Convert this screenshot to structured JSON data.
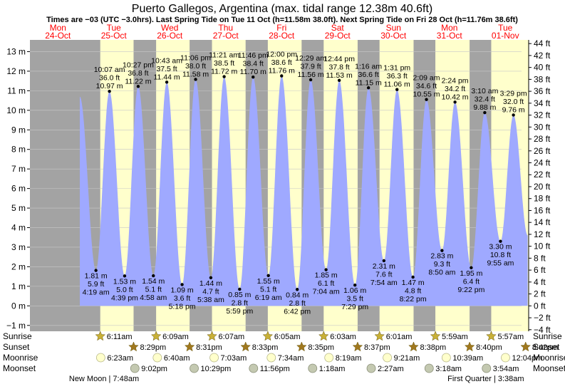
{
  "chart_data": {
    "type": "area",
    "title": "Puerto Gallegos, Argentina (max. tidal range 12.38m 40.6ft)",
    "subtitle": "Times are −03 (UTC −3.0hrs). Last Spring Tide on Tue 11 Oct (h=11.58m 38.0ft). Next Spring Tide on Fri 28 Oct (h=11.76m 38.6ft)",
    "days": [
      {
        "name": "Mon",
        "date": "24-Oct"
      },
      {
        "name": "Tue",
        "date": "25-Oct"
      },
      {
        "name": "Wed",
        "date": "26-Oct"
      },
      {
        "name": "Thu",
        "date": "27-Oct"
      },
      {
        "name": "Fri",
        "date": "28-Oct"
      },
      {
        "name": "Sat",
        "date": "29-Oct"
      },
      {
        "name": "Sun",
        "date": "30-Oct"
      },
      {
        "name": "Mon",
        "date": "31-Oct"
      },
      {
        "name": "Tue",
        "date": "01-Nov"
      }
    ],
    "ylabel_left": "m",
    "ylabel_right": "ft",
    "ylim_m": [
      -1.3,
      13.6
    ],
    "ylim_ft": [
      -4.2652,
      44.6195
    ],
    "y_ticks_m": [
      -1,
      0,
      1,
      2,
      3,
      4,
      5,
      6,
      7,
      8,
      9,
      10,
      11,
      12,
      13
    ],
    "y_tick_labels_m": [
      "−1 m",
      "0 m",
      "1 m",
      "2 m",
      "3 m",
      "4 m",
      "5 m",
      "6 m",
      "7 m",
      "8 m",
      "9 m",
      "10 m",
      "11 m",
      "12 m",
      "13 m"
    ],
    "y_ticks_ft": [
      -4,
      -2,
      0,
      2,
      4,
      6,
      8,
      10,
      12,
      14,
      16,
      18,
      20,
      22,
      24,
      26,
      28,
      30,
      32,
      34,
      36,
      38,
      40,
      42,
      44
    ],
    "y_tick_labels_ft": [
      "−4 ft",
      "−2 ft",
      "0 ft",
      "2 ft",
      "4 ft",
      "6 ft",
      "8 ft",
      "10 ft",
      "12 ft",
      "14 ft",
      "16 ft",
      "18 ft",
      "20 ft",
      "22 ft",
      "24 ft",
      "26 ft",
      "28 ft",
      "30 ft",
      "32 ft",
      "34 ft",
      "36 ft",
      "38 ft",
      "40 ft",
      "42 ft",
      "44 ft"
    ],
    "series": [
      {
        "name": "tide",
        "points": [
          {
            "day": 0,
            "hour": 21.4,
            "kind": "high",
            "h": 10.7,
            "labels": []
          },
          {
            "day": 1,
            "hour": 4.32,
            "kind": "low",
            "h": 1.81,
            "labels": [
              "1.81 m",
              "5.9 ft",
              "4:19 am"
            ]
          },
          {
            "day": 1,
            "hour": 10.12,
            "kind": "high",
            "h": 10.97,
            "labels": [
              "10:07 am",
              "36.0 ft",
              "10.97 m"
            ]
          },
          {
            "day": 1,
            "hour": 16.65,
            "kind": "low",
            "h": 1.53,
            "labels": [
              "1.53 m",
              "5.0 ft",
              "4:39 pm"
            ]
          },
          {
            "day": 1,
            "hour": 22.45,
            "kind": "high",
            "h": 11.22,
            "labels": [
              "10:27 pm",
              "36.8 ft",
              "11.22 m"
            ]
          },
          {
            "day": 2,
            "hour": 4.97,
            "kind": "low",
            "h": 1.54,
            "labels": [
              "1.54 m",
              "5.1 ft",
              "4:58 am"
            ]
          },
          {
            "day": 2,
            "hour": 10.72,
            "kind": "high",
            "h": 11.44,
            "labels": [
              "10:43 am",
              "37.5 ft",
              "11.44 m"
            ]
          },
          {
            "day": 2,
            "hour": 17.3,
            "kind": "low",
            "h": 1.09,
            "labels": [
              "1.09 m",
              "3.6 ft",
              "5:18 pm"
            ]
          },
          {
            "day": 2,
            "hour": 23.1,
            "kind": "high",
            "h": 11.58,
            "labels": [
              "11:06 pm",
              "38.0 ft",
              "11.58 m"
            ]
          },
          {
            "day": 3,
            "hour": 5.63,
            "kind": "low",
            "h": 1.44,
            "labels": [
              "1.44 m",
              "4.7 ft",
              "5:38 am"
            ]
          },
          {
            "day": 3,
            "hour": 11.35,
            "kind": "high",
            "h": 11.72,
            "labels": [
              "11:21 am",
              "38.5 ft",
              "11.72 m"
            ]
          },
          {
            "day": 3,
            "hour": 17.98,
            "kind": "low",
            "h": 0.85,
            "labels": [
              "0.85 m",
              "2.8 ft",
              "5:59 pm"
            ]
          },
          {
            "day": 3,
            "hour": 23.77,
            "kind": "high",
            "h": 11.7,
            "labels": [
              "11:46 pm",
              "38.4 ft",
              "11.70 m"
            ]
          },
          {
            "day": 4,
            "hour": 6.32,
            "kind": "low",
            "h": 1.55,
            "labels": [
              "1.55 m",
              "5.1 ft",
              "6:19 am"
            ]
          },
          {
            "day": 4,
            "hour": 12.0,
            "kind": "high",
            "h": 11.76,
            "labels": [
              "12:00 pm",
              "38.6 ft",
              "11.76 m"
            ]
          },
          {
            "day": 4,
            "hour": 18.7,
            "kind": "low",
            "h": 0.84,
            "labels": [
              "0.84 m",
              "2.8 ft",
              "6:42 pm"
            ]
          },
          {
            "day": 5,
            "hour": 0.48,
            "kind": "high",
            "h": 11.56,
            "labels": [
              "12:29 am",
              "37.9 ft",
              "11.56 m"
            ]
          },
          {
            "day": 5,
            "hour": 7.07,
            "kind": "low",
            "h": 1.85,
            "labels": [
              "1.85 m",
              "6.1 ft",
              "7:04 am"
            ]
          },
          {
            "day": 5,
            "hour": 12.73,
            "kind": "high",
            "h": 11.53,
            "labels": [
              "12:44 pm",
              "37.8 ft",
              "11.53 m"
            ]
          },
          {
            "day": 5,
            "hour": 19.48,
            "kind": "low",
            "h": 1.06,
            "labels": [
              "1.06 m",
              "3.5 ft",
              "7:29 pm"
            ]
          },
          {
            "day": 6,
            "hour": 1.27,
            "kind": "high",
            "h": 11.15,
            "labels": [
              "1:16 am",
              "36.6 ft",
              "11.15 m"
            ]
          },
          {
            "day": 6,
            "hour": 7.9,
            "kind": "low",
            "h": 2.31,
            "labels": [
              "2.31 m",
              "7.6 ft",
              "7:54 am"
            ]
          },
          {
            "day": 6,
            "hour": 13.52,
            "kind": "high",
            "h": 11.06,
            "labels": [
              "1:31 pm",
              "36.3 ft",
              "11.06 m"
            ]
          },
          {
            "day": 6,
            "hour": 20.37,
            "kind": "low",
            "h": 1.47,
            "labels": [
              "1.47 m",
              "4.8 ft",
              "8:22 pm"
            ]
          },
          {
            "day": 7,
            "hour": 2.15,
            "kind": "high",
            "h": 10.55,
            "labels": [
              "2:09 am",
              "34.6 ft",
              "10.55 m"
            ]
          },
          {
            "day": 7,
            "hour": 8.83,
            "kind": "low",
            "h": 2.83,
            "labels": [
              "2.83 m",
              "9.3 ft",
              "8:50 am"
            ]
          },
          {
            "day": 7,
            "hour": 14.4,
            "kind": "high",
            "h": 10.42,
            "labels": [
              "2:24 pm",
              "34.2 ft",
              "10.42 m"
            ]
          },
          {
            "day": 7,
            "hour": 21.37,
            "kind": "low",
            "h": 1.95,
            "labels": [
              "1.95 m",
              "6.4 ft",
              "9:22 pm"
            ]
          },
          {
            "day": 8,
            "hour": 3.17,
            "kind": "high",
            "h": 9.88,
            "labels": [
              "3:10 am",
              "32.4 ft",
              "9.88 m"
            ]
          },
          {
            "day": 8,
            "hour": 9.92,
            "kind": "low",
            "h": 3.3,
            "labels": [
              "3.30 m",
              "10.8 ft",
              "9:55 am"
            ]
          },
          {
            "day": 8,
            "hour": 15.48,
            "kind": "high",
            "h": 9.76,
            "labels": [
              "3:29 pm",
              "32.0 ft",
              "9.76 m"
            ]
          },
          {
            "day": 8,
            "hour": 21.6,
            "kind": "low",
            "h": 3.6,
            "labels": []
          }
        ]
      }
    ],
    "sun_moon": {
      "row_labels": [
        "Sunrise",
        "Sunset",
        "Moonrise",
        "Moonset"
      ],
      "sunrise": [
        {
          "day": 1,
          "hour": 6.18,
          "time": "6:11am"
        },
        {
          "day": 2,
          "hour": 6.15,
          "time": "6:09am"
        },
        {
          "day": 3,
          "hour": 6.12,
          "time": "6:07am"
        },
        {
          "day": 4,
          "hour": 6.08,
          "time": "6:05am"
        },
        {
          "day": 5,
          "hour": 6.05,
          "time": "6:03am"
        },
        {
          "day": 6,
          "hour": 6.02,
          "time": "6:01am"
        },
        {
          "day": 7,
          "hour": 5.98,
          "time": "5:59am"
        },
        {
          "day": 8,
          "hour": 5.95,
          "time": "5:57am"
        }
      ],
      "sunset": [
        {
          "day": 1,
          "hour": 20.48,
          "time": "8:29pm"
        },
        {
          "day": 2,
          "hour": 20.52,
          "time": "8:31pm"
        },
        {
          "day": 3,
          "hour": 20.55,
          "time": "8:33pm"
        },
        {
          "day": 4,
          "hour": 20.58,
          "time": "8:35pm"
        },
        {
          "day": 5,
          "hour": 20.62,
          "time": "8:37pm"
        },
        {
          "day": 6,
          "hour": 20.63,
          "time": "8:38pm"
        },
        {
          "day": 7,
          "hour": 20.67,
          "time": "8:40pm"
        },
        {
          "day": 8,
          "hour": 20.7,
          "time": "8:42pm"
        }
      ],
      "moonrise": [
        {
          "day": 1,
          "hour": 6.38,
          "time": "6:23am"
        },
        {
          "day": 2,
          "hour": 6.67,
          "time": "6:40am"
        },
        {
          "day": 3,
          "hour": 7.05,
          "time": "7:03am"
        },
        {
          "day": 4,
          "hour": 7.57,
          "time": "7:34am"
        },
        {
          "day": 5,
          "hour": 8.32,
          "time": "8:19am"
        },
        {
          "day": 6,
          "hour": 9.35,
          "time": "9:21am"
        },
        {
          "day": 7,
          "hour": 10.65,
          "time": "10:39am"
        },
        {
          "day": 8,
          "hour": 12.07,
          "time": "12:04pm"
        }
      ],
      "moonset": [
        {
          "day": 1,
          "hour": 21.03,
          "time": "9:02pm"
        },
        {
          "day": 2,
          "hour": 22.48,
          "time": "10:29pm"
        },
        {
          "day": 3,
          "hour": 23.93,
          "time": "11:56pm"
        },
        {
          "day": 5,
          "hour": 1.3,
          "time": "1:18am"
        },
        {
          "day": 6,
          "hour": 2.45,
          "time": "2:27am"
        },
        {
          "day": 7,
          "hour": 3.3,
          "time": "3:18am"
        },
        {
          "day": 8,
          "hour": 3.9,
          "time": "3:54am"
        }
      ],
      "phases": [
        {
          "text": "New Moon | 7:48am",
          "day": 1,
          "hour": 7.8
        },
        {
          "text": "First Quarter | 3:38am",
          "day": 8,
          "hour": 3.63
        }
      ]
    }
  },
  "colors": {
    "night": "#a3a3a3",
    "day": "#ffffcc",
    "tide": "#9fa9ff",
    "sunset_strip": "#ffffcc",
    "grid": "#c8c8c8",
    "axis": "#000000",
    "day_header": "#ff0000",
    "star_sunrise": "#c8b036",
    "star_sunset": "#a0781e",
    "moon_rise": "#ffffcc",
    "moon_set": "#c4c9b1"
  }
}
